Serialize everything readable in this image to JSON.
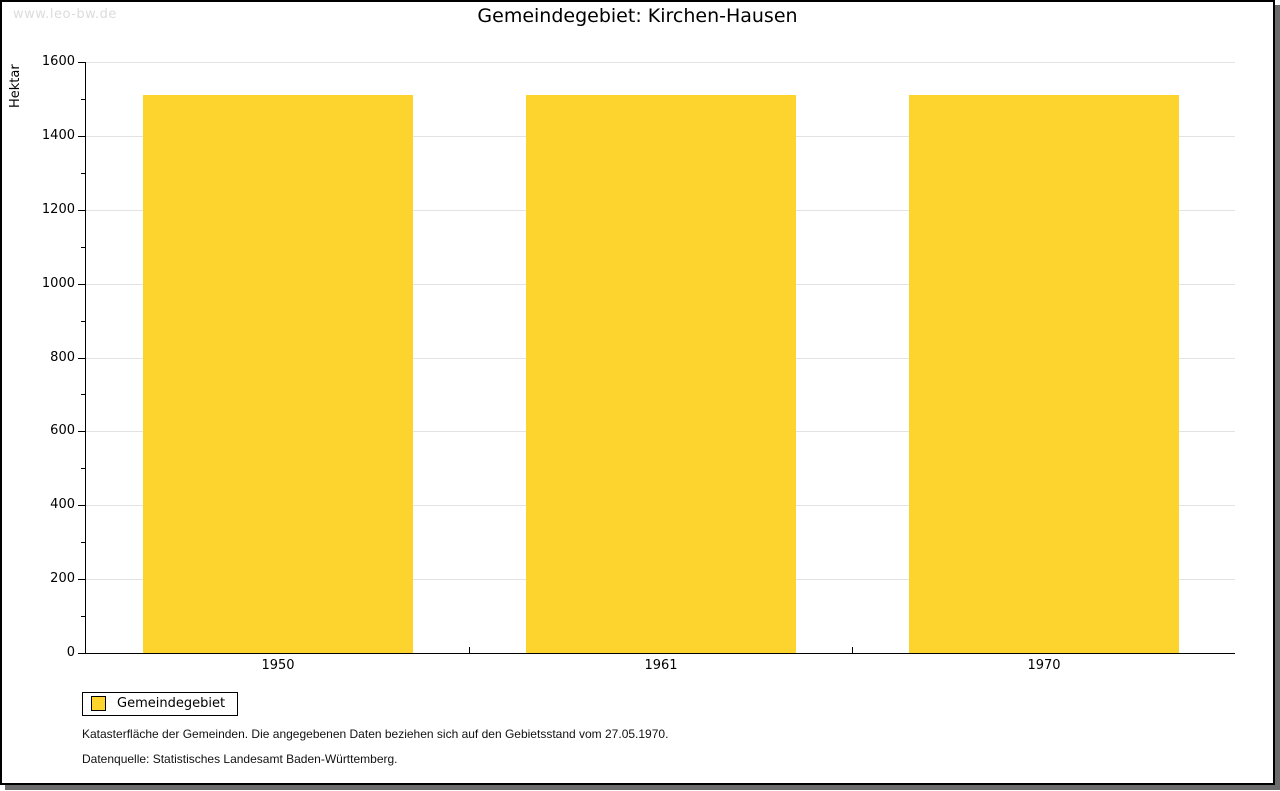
{
  "watermark": "www.leo-bw.de",
  "chart_data": {
    "type": "bar",
    "title": "Gemeindegebiet: Kirchen-Hausen",
    "categories": [
      "1950",
      "1961",
      "1970"
    ],
    "values": [
      1511,
      1511,
      1511
    ],
    "series_name": "Gemeindegebiet",
    "xlabel": "",
    "ylabel": "Hektar",
    "ylim": [
      0,
      1600
    ],
    "y_major_step": 200,
    "y_minor_step": 100,
    "grid": true,
    "legend_position": "bottom-left"
  },
  "legend": {
    "label": "Gemeindegebiet"
  },
  "footer": {
    "line1": "Katasterfläche der Gemeinden. Die angegebenen Daten beziehen sich auf den Gebietsstand vom 27.05.1970.",
    "line2": "Datenquelle: Statistisches Landesamt Baden-Württemberg."
  },
  "colors": {
    "bar": "#fcd42d",
    "grid": "#e3e3e3",
    "axis": "#000000",
    "watermark": "#dcdcdc",
    "frame_shadow": "#6b6b6b"
  }
}
